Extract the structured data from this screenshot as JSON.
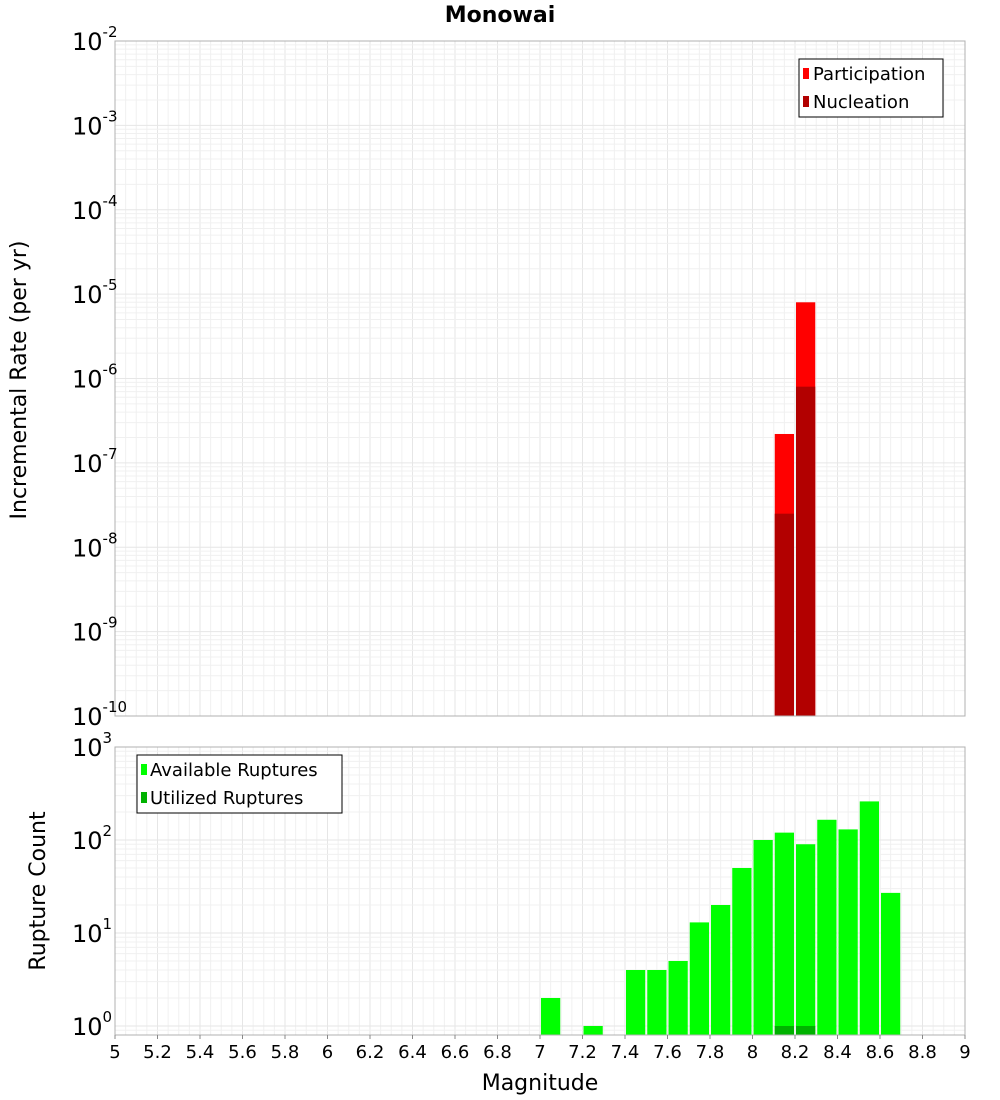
{
  "title": "Monowai",
  "chart_data": [
    {
      "type": "bar",
      "name": "incremental-rate-panel",
      "ylabel": "Incremental Rate (per yr)",
      "yscale": "log",
      "ylim_exp": [
        -10,
        -2
      ],
      "y_tick_exponents": [
        "-10",
        "-9",
        "-8",
        "-7",
        "-6",
        "-5",
        "-4",
        "-3",
        "-2"
      ],
      "bin_width": 0.1,
      "legend_position": "top-right",
      "series": [
        {
          "name": "Participation",
          "color": "#ff0000",
          "x": [
            8.15,
            8.25
          ],
          "values": [
            2.2e-07,
            8e-06
          ]
        },
        {
          "name": "Nucleation",
          "color": "#b20000",
          "x": [
            8.15,
            8.25
          ],
          "values": [
            2.5e-08,
            8e-07
          ]
        }
      ]
    },
    {
      "type": "bar",
      "name": "rupture-count-panel",
      "ylabel": "Rupture Count",
      "yscale": "log",
      "ylim": [
        0.8,
        1000
      ],
      "y_tick_exponents": [
        "0",
        "1",
        "2",
        "3"
      ],
      "bin_width": 0.1,
      "legend_position": "top-left",
      "series": [
        {
          "name": "Available Ruptures",
          "color": "#00ff00",
          "x": [
            7.05,
            7.25,
            7.45,
            7.55,
            7.65,
            7.75,
            7.85,
            7.95,
            8.05,
            8.15,
            8.25,
            8.35,
            8.45,
            8.55,
            8.65
          ],
          "values": [
            2,
            1,
            4,
            4,
            5,
            13,
            20,
            50,
            100,
            120,
            90,
            165,
            130,
            260,
            27
          ]
        },
        {
          "name": "Utilized Ruptures",
          "color": "#00b200",
          "x": [
            8.15,
            8.25
          ],
          "values": [
            1,
            1
          ]
        }
      ]
    }
  ],
  "xaxis": {
    "label": "Magnitude",
    "xlim": [
      5,
      9
    ],
    "ticks": [
      "5",
      "5.2",
      "5.4",
      "5.6",
      "5.8",
      "6",
      "6.2",
      "6.4",
      "6.6",
      "6.8",
      "7",
      "7.2",
      "7.4",
      "7.6",
      "7.8",
      "8",
      "8.2",
      "8.4",
      "8.6",
      "8.8",
      "9"
    ]
  },
  "ytick_base": "10"
}
